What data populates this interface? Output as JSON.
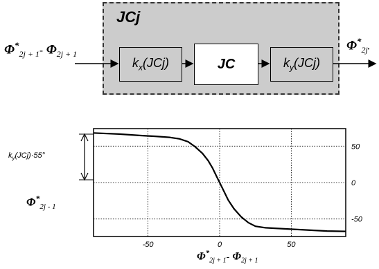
{
  "block_diagram": {
    "outer_label": "JCj",
    "input_label_a": "Φ",
    "input_star_a": "*",
    "input_sub_a": "2j + 1",
    "input_dash": "-",
    "input_label_b": "Φ",
    "input_sub_b": "2j + 1",
    "output_label": "Φ",
    "output_star": "*",
    "output_sub": "2j",
    "output_period": ".",
    "block_kx": "kx(JCj)",
    "block_jc": "JC",
    "block_ky": "ky(JCj)",
    "colors": {
      "outer_fill": "#cccccc",
      "block_fill": "#cccccc",
      "jc_fill": "#ffffff"
    }
  },
  "chart_labels": {
    "left_gain": "ky(JCj)·55°",
    "left_phi": "Φ",
    "left_phi_star": "*",
    "left_phi_sub": "2j - 1",
    "x_axis_phi_a": "Φ",
    "x_axis_star": "*",
    "x_axis_sub_a": "2j + 1",
    "x_axis_dash": "-",
    "x_axis_phi_b": "Φ",
    "x_axis_sub_b": "2j + 1"
  },
  "chart_data": {
    "type": "line",
    "xlim": [
      -88,
      88
    ],
    "ylim": [
      -74,
      74
    ],
    "x_ticks": [
      -50,
      0,
      50
    ],
    "y_ticks": [
      50,
      0,
      -50
    ],
    "grid": true,
    "x": [
      -88,
      -70,
      -55,
      -45,
      -35,
      -28,
      -22,
      -17,
      -12,
      -8,
      -5,
      -3,
      -1,
      0,
      1,
      3,
      6,
      10,
      15,
      20,
      25,
      32,
      45,
      60,
      75,
      88
    ],
    "y": [
      68,
      66.5,
      64.5,
      63.5,
      62,
      60,
      56,
      49,
      40,
      30,
      20,
      12,
      4,
      0,
      -4,
      -12,
      -24,
      -36,
      -47,
      -55,
      -60,
      -62,
      -63.5,
      -65,
      -66.5,
      -67
    ]
  }
}
